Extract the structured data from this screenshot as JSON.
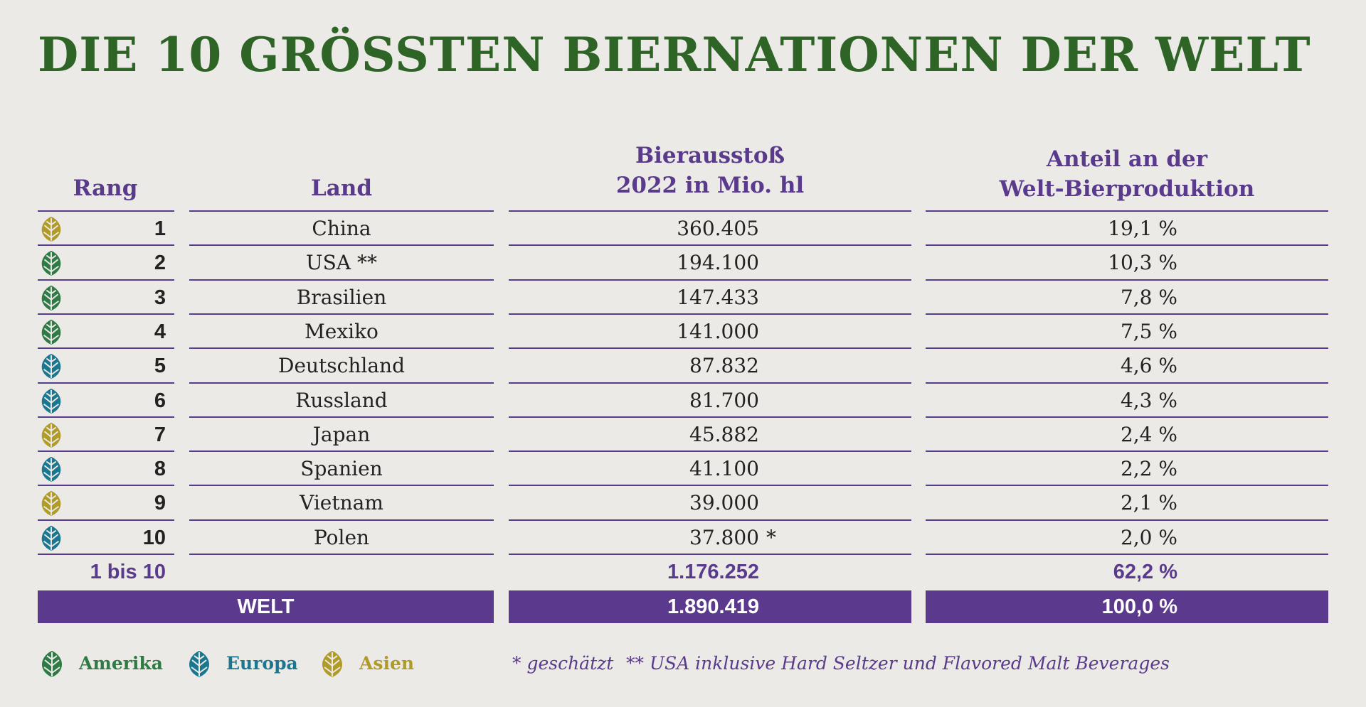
{
  "title": "DIE 10 GRÖSSTEN BIERNATIONEN DER WELT",
  "headers": {
    "rank": "Rang",
    "country": "Land",
    "output_line1": "Bierausstoß",
    "output_line2": "2022 in Mio. hl",
    "share_line1": "Anteil an der",
    "share_line2": "Welt-Bierproduktion"
  },
  "colors": {
    "title": "#2f6427",
    "accent": "#5b3a8e",
    "amerika": "#2f7a45",
    "europa": "#1b7690",
    "asien": "#b09a28"
  },
  "chart_data": {
    "type": "table",
    "title": "DIE 10 GRÖSSTEN BIERNATIONEN DER WELT",
    "columns": [
      "Rang",
      "Land",
      "Bierausstoß 2022 in Mio. hl",
      "Anteil an der Welt-Bierproduktion"
    ],
    "rows": [
      {
        "rank": "1",
        "country": "China",
        "output": "360.405",
        "share": "19,1 %",
        "region": "asien"
      },
      {
        "rank": "2",
        "country": "USA **",
        "output": "194.100",
        "share": "10,3 %",
        "region": "amerika"
      },
      {
        "rank": "3",
        "country": "Brasilien",
        "output": "147.433",
        "share": "7,8 %",
        "region": "amerika"
      },
      {
        "rank": "4",
        "country": "Mexiko",
        "output": "141.000",
        "share": "7,5 %",
        "region": "amerika"
      },
      {
        "rank": "5",
        "country": "Deutschland",
        "output": "87.832",
        "share": "4,6 %",
        "region": "europa"
      },
      {
        "rank": "6",
        "country": "Russland",
        "output": "81.700",
        "share": "4,3 %",
        "region": "europa"
      },
      {
        "rank": "7",
        "country": "Japan",
        "output": "45.882",
        "share": "2,4 %",
        "region": "asien"
      },
      {
        "rank": "8",
        "country": "Spanien",
        "output": "41.100",
        "share": "2,2 %",
        "region": "europa"
      },
      {
        "rank": "9",
        "country": "Vietnam",
        "output": "39.000",
        "share": "2,1 %",
        "region": "asien"
      },
      {
        "rank": "10",
        "country": "Polen",
        "output": "37.800",
        "output_note": "*",
        "share": "2,0 %",
        "region": "europa"
      }
    ],
    "subtotal": {
      "label": "1 bis 10",
      "output": "1.176.252",
      "share": "62,2 %"
    },
    "total": {
      "label": "WELT",
      "output": "1.890.419",
      "share": "100,0 %"
    }
  },
  "legend": [
    {
      "label": "Amerika",
      "region": "amerika",
      "icon": "hop-icon"
    },
    {
      "label": "Europa",
      "region": "europa",
      "icon": "hop-icon"
    },
    {
      "label": "Asien",
      "region": "asien",
      "icon": "hop-icon"
    }
  ],
  "notes": {
    "estimated": "* geschätzt",
    "usa": "** USA inklusive Hard Seltzer und Flavored Malt Beverages"
  }
}
